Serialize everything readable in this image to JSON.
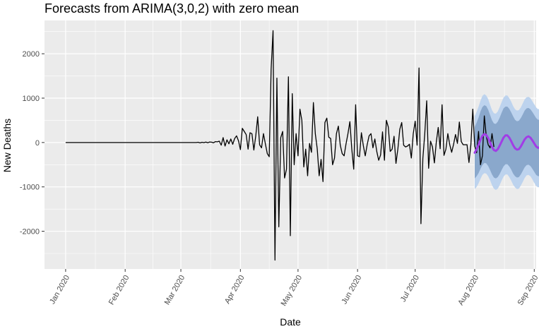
{
  "chart_data": {
    "type": "line",
    "title": "Forecasts from ARIMA(3,0,2) with zero mean",
    "xlabel": "Date",
    "ylabel": "New Deaths",
    "ylim": [
      -2850,
      2750
    ],
    "y_ticks": [
      2000,
      1000,
      0,
      -1000,
      -2000
    ],
    "y_tick_labels": [
      "2000",
      "1000",
      "0",
      "-1000",
      "-2000"
    ],
    "x_range": [
      "2019-12-21",
      "2020-09-02"
    ],
    "x_ticks": [
      "2020-01-01",
      "2020-02-01",
      "2020-03-01",
      "2020-04-01",
      "2020-05-01",
      "2020-06-01",
      "2020-07-01",
      "2020-08-01",
      "2020-09-01"
    ],
    "x_tick_labels": [
      "Jan 2020",
      "Feb 2020",
      "Mar 2020",
      "Apr 2020",
      "May 2020",
      "Jun 2020",
      "Jul 2020",
      "Aug 2020",
      "Sep 2020"
    ],
    "grid": true,
    "colors": {
      "panel": "#ebebeb",
      "grid": "#ffffff",
      "observed": "#000000",
      "forecast": "#a13de6",
      "band80": "#8aa8cc",
      "band95": "#bdd3ee"
    },
    "observed": {
      "start_date": "2020-01-01",
      "values": [
        0,
        0,
        0,
        0,
        0,
        0,
        0,
        0,
        0,
        0,
        0,
        0,
        0,
        0,
        0,
        0,
        0,
        0,
        0,
        0,
        0,
        0,
        0,
        0,
        0,
        0,
        0,
        0,
        0,
        0,
        0,
        0,
        0,
        0,
        0,
        0,
        0,
        0,
        0,
        0,
        0,
        0,
        0,
        0,
        0,
        0,
        0,
        0,
        0,
        0,
        0,
        0,
        0,
        0,
        0,
        0,
        0,
        0,
        0,
        0,
        0,
        0,
        0,
        0,
        0,
        0,
        0,
        0,
        0,
        5,
        -8,
        6,
        -3,
        10,
        -5,
        12,
        8,
        -6,
        20,
        15,
        30,
        -60,
        110,
        -80,
        60,
        -30,
        80,
        -40,
        90,
        150,
        40,
        -160,
        320,
        250,
        180,
        -150,
        220,
        200,
        -170,
        150,
        580,
        -50,
        -120,
        200,
        -30,
        -250,
        -320,
        1650,
        2520,
        -2650,
        1450,
        -1900,
        110,
        250,
        -800,
        -600,
        1480,
        -2100,
        1100,
        -500,
        200,
        -300,
        750,
        500,
        -550,
        -150,
        -750,
        -20,
        -220,
        900,
        200,
        -140,
        -750,
        -380,
        -880,
        450,
        550,
        120,
        90,
        -500,
        -350,
        200,
        370,
        -60,
        -250,
        -300,
        -30,
        200,
        470,
        -150,
        -600,
        850,
        -300,
        -320,
        220,
        -70,
        -300,
        -50,
        150,
        200,
        -120,
        80,
        -200,
        -400,
        -280,
        240,
        -400,
        500,
        350,
        -200,
        -150,
        140,
        -470,
        -140,
        300,
        450,
        -60,
        -100,
        -80,
        -40,
        -350,
        200,
        480,
        -60,
        1680,
        -1830,
        -360,
        200,
        940,
        -580,
        30,
        -100,
        -460,
        10,
        340,
        -140,
        850,
        -290,
        -150,
        200,
        -50,
        -220,
        -40,
        180,
        -20,
        460,
        20,
        -50,
        -50,
        -50,
        -450,
        -50,
        750,
        -80,
        -230,
        250,
        -500,
        -300,
        600,
        150,
        -50,
        -120,
        200,
        -100
      ]
    },
    "forecast": {
      "start_date": "2020-08-01",
      "mean": [
        -230,
        -150,
        -50,
        60,
        150,
        190,
        170,
        100,
        0,
        -100,
        -170,
        -190,
        -150,
        -70,
        20,
        110,
        160,
        160,
        110,
        30,
        -60,
        -130,
        -160,
        -150,
        -90,
        -10,
        70,
        120,
        140,
        110,
        50,
        -20,
        -90,
        -120,
        -110,
        -70,
        -10,
        50,
        90,
        100,
        80,
        30,
        -30,
        -70,
        -80,
        -60
      ],
      "lo80": [
        -810,
        -760,
        -690,
        -590,
        -510,
        -460,
        -470,
        -530,
        -620,
        -720,
        -790,
        -810,
        -780,
        -710,
        -620,
        -540,
        -490,
        -490,
        -540,
        -610,
        -700,
        -760,
        -790,
        -780,
        -720,
        -640,
        -560,
        -510,
        -500,
        -530,
        -590,
        -660,
        -730,
        -760,
        -750,
        -710,
        -650,
        -590,
        -550,
        -540,
        -560,
        -610,
        -670,
        -710,
        -720,
        -700
      ],
      "hi80": [
        350,
        450,
        560,
        700,
        800,
        840,
        820,
        740,
        620,
        500,
        430,
        420,
        470,
        560,
        670,
        770,
        810,
        810,
        760,
        680,
        590,
        510,
        480,
        490,
        550,
        630,
        720,
        770,
        780,
        750,
        690,
        620,
        550,
        510,
        520,
        570,
        630,
        690,
        730,
        740,
        720,
        670,
        610,
        570,
        560,
        580
      ],
      "lo95": [
        -1050,
        -1000,
        -920,
        -820,
        -730,
        -690,
        -700,
        -760,
        -850,
        -960,
        -1040,
        -1070,
        -1040,
        -960,
        -860,
        -770,
        -720,
        -720,
        -780,
        -860,
        -950,
        -1010,
        -1050,
        -1040,
        -970,
        -890,
        -800,
        -740,
        -730,
        -760,
        -830,
        -910,
        -980,
        -1010,
        -1000,
        -960,
        -900,
        -840,
        -800,
        -790,
        -810,
        -860,
        -920,
        -960,
        -970,
        -950
      ],
      "hi95": [
        600,
        690,
        810,
        940,
        1050,
        1090,
        1060,
        980,
        850,
        730,
        660,
        650,
        700,
        800,
        910,
        1010,
        1060,
        1060,
        1000,
        920,
        820,
        750,
        720,
        730,
        790,
        880,
        970,
        1020,
        1030,
        1000,
        930,
        860,
        790,
        750,
        760,
        810,
        870,
        930,
        970,
        980,
        960,
        910,
        850,
        810,
        800,
        820
      ]
    }
  }
}
